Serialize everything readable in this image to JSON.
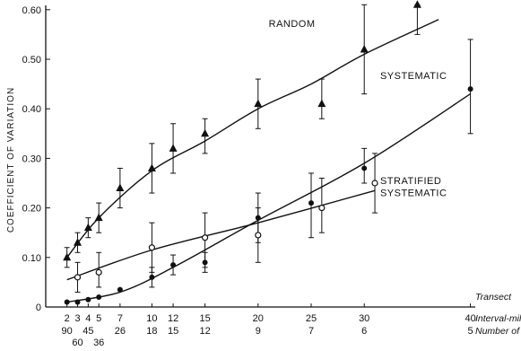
{
  "chart_data": {
    "type": "scatter",
    "ylabel": "COEFFICIENT OF VARIATION",
    "ylim": [
      0,
      0.63
    ],
    "xlim": [
      0,
      42
    ],
    "y_ticks": [
      0,
      0.1,
      0.2,
      0.3,
      0.4,
      0.5,
      0.6
    ],
    "y_tick_labels": [
      "0",
      "0.10",
      "0.20",
      "0.30",
      "0.40",
      "0.50",
      "0.60"
    ],
    "x_rows": [
      {
        "label": "Transect",
        "ticks": []
      },
      {
        "label": "Interval-miles",
        "ticks": [
          {
            "x": 2,
            "text": "2"
          },
          {
            "x": 3,
            "text": "3"
          },
          {
            "x": 4,
            "text": "4"
          },
          {
            "x": 5,
            "text": "5"
          },
          {
            "x": 7,
            "text": "7"
          },
          {
            "x": 10,
            "text": "10"
          },
          {
            "x": 12,
            "text": "12"
          },
          {
            "x": 15,
            "text": "15"
          },
          {
            "x": 20,
            "text": "20"
          },
          {
            "x": 25,
            "text": "25"
          },
          {
            "x": 30,
            "text": "30"
          },
          {
            "x": 40,
            "text": "40"
          }
        ]
      },
      {
        "label": "Number of Transects",
        "ticks": [
          {
            "x": 2,
            "text": "90"
          },
          {
            "x": 4,
            "text": "45"
          },
          {
            "x": 7,
            "text": "26"
          },
          {
            "x": 10,
            "text": "18"
          },
          {
            "x": 12,
            "text": "15"
          },
          {
            "x": 15,
            "text": "12"
          },
          {
            "x": 20,
            "text": "9"
          },
          {
            "x": 25,
            "text": "7"
          },
          {
            "x": 30,
            "text": "6"
          },
          {
            "x": 40,
            "text": "5"
          }
        ]
      },
      {
        "label": "",
        "ticks": [
          {
            "x": 3,
            "text": "60"
          },
          {
            "x": 5,
            "text": "36"
          }
        ]
      }
    ],
    "series": [
      {
        "name": "RANDOM",
        "marker": "triangle",
        "points": [
          {
            "x": 2,
            "y": 0.1,
            "lo": 0.08,
            "hi": 0.12
          },
          {
            "x": 3,
            "y": 0.13,
            "lo": 0.11,
            "hi": 0.15
          },
          {
            "x": 4,
            "y": 0.16,
            "lo": 0.14,
            "hi": 0.18
          },
          {
            "x": 5,
            "y": 0.18,
            "lo": 0.15,
            "hi": 0.21
          },
          {
            "x": 7,
            "y": 0.24,
            "lo": 0.2,
            "hi": 0.28
          },
          {
            "x": 10,
            "y": 0.28,
            "lo": 0.23,
            "hi": 0.33
          },
          {
            "x": 12,
            "y": 0.32,
            "lo": 0.27,
            "hi": 0.37
          },
          {
            "x": 15,
            "y": 0.35,
            "lo": 0.31,
            "hi": 0.38
          },
          {
            "x": 20,
            "y": 0.41,
            "lo": 0.36,
            "hi": 0.46
          },
          {
            "x": 26,
            "y": 0.41,
            "lo": 0.38,
            "hi": 0.46
          },
          {
            "x": 30,
            "y": 0.52,
            "lo": 0.43,
            "hi": 0.61
          },
          {
            "x": 35,
            "y": 0.61,
            "lo": 0.55,
            "hi": 0.61
          }
        ],
        "curve": [
          [
            2,
            0.1
          ],
          [
            5,
            0.18
          ],
          [
            10,
            0.275
          ],
          [
            15,
            0.335
          ],
          [
            20,
            0.4
          ],
          [
            25,
            0.45
          ],
          [
            30,
            0.51
          ],
          [
            37,
            0.58
          ]
        ]
      },
      {
        "name": "SYSTEMATIC",
        "marker": "filled-circle",
        "points": [
          {
            "x": 2,
            "y": 0.01
          },
          {
            "x": 3,
            "y": 0.01
          },
          {
            "x": 4,
            "y": 0.015
          },
          {
            "x": 5,
            "y": 0.02
          },
          {
            "x": 7,
            "y": 0.035
          },
          {
            "x": 10,
            "y": 0.06,
            "lo": 0.04,
            "hi": 0.08
          },
          {
            "x": 12,
            "y": 0.085,
            "lo": 0.065,
            "hi": 0.105
          },
          {
            "x": 15,
            "y": 0.09,
            "lo": 0.07,
            "hi": 0.11
          },
          {
            "x": 20,
            "y": 0.18,
            "lo": 0.13,
            "hi": 0.23
          },
          {
            "x": 25,
            "y": 0.21,
            "lo": 0.14,
            "hi": 0.27
          },
          {
            "x": 30,
            "y": 0.28,
            "lo": 0.25,
            "hi": 0.32
          },
          {
            "x": 40,
            "y": 0.44,
            "lo": 0.35,
            "hi": 0.54
          }
        ],
        "curve": [
          [
            2,
            0.01
          ],
          [
            7,
            0.03
          ],
          [
            12,
            0.08
          ],
          [
            20,
            0.175
          ],
          [
            30,
            0.29
          ],
          [
            40,
            0.43
          ]
        ]
      },
      {
        "name": "STRATIFIED SYSTEMATIC",
        "marker": "open-circle",
        "points": [
          {
            "x": 3,
            "y": 0.06,
            "lo": 0.03,
            "hi": 0.09
          },
          {
            "x": 5,
            "y": 0.07,
            "lo": 0.04,
            "hi": 0.11
          },
          {
            "x": 10,
            "y": 0.12,
            "lo": 0.07,
            "hi": 0.17
          },
          {
            "x": 15,
            "y": 0.14,
            "lo": 0.08,
            "hi": 0.19
          },
          {
            "x": 20,
            "y": 0.145,
            "lo": 0.09,
            "hi": 0.2
          },
          {
            "x": 26,
            "y": 0.2,
            "lo": 0.15,
            "hi": 0.26
          },
          {
            "x": 31,
            "y": 0.25,
            "lo": 0.19,
            "hi": 0.31
          }
        ],
        "curve": [
          [
            2,
            0.055
          ],
          [
            10,
            0.115
          ],
          [
            20,
            0.17
          ],
          [
            31,
            0.235
          ]
        ]
      }
    ],
    "annotations": [
      {
        "text": "RANDOM",
        "x": 21,
        "y": 0.565
      },
      {
        "text": "SYSTEMATIC",
        "x": 31.5,
        "y": 0.46
      },
      {
        "text": "STRATIFIED",
        "x": 31.5,
        "y": 0.248
      },
      {
        "text": "SYSTEMATIC",
        "x": 31.5,
        "y": 0.224
      }
    ]
  }
}
